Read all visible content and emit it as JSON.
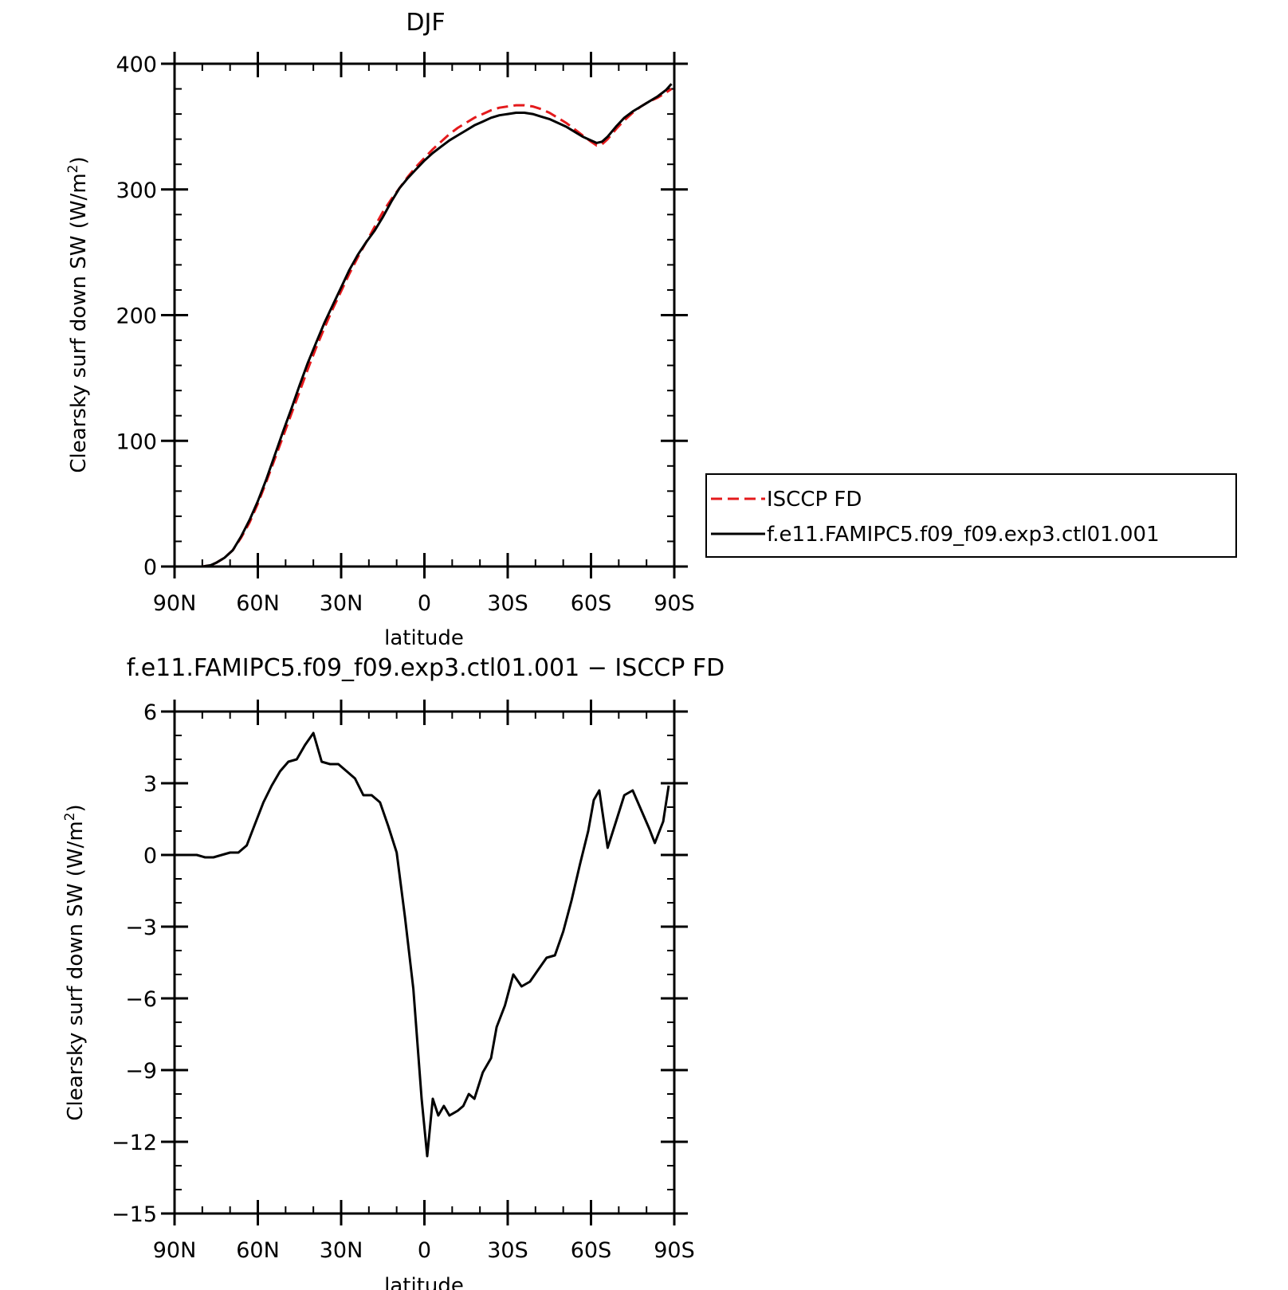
{
  "page": {
    "background": "#ffffff"
  },
  "chart_data": [
    {
      "id": "top",
      "type": "line",
      "title": "DJF",
      "xlabel": "latitude",
      "ylabel": "Clearsky surf down SW (W/m²)",
      "ylabel_main": "Clearsky surf down SW (W/m",
      "ylabel_sup": "2",
      "ylabel_close": ")",
      "xlim": [
        90,
        -90
      ],
      "ylim": [
        0,
        400
      ],
      "x_ticks": [
        90,
        60,
        30,
        0,
        -30,
        -60,
        -90
      ],
      "x_tick_labels": [
        "90N",
        "60N",
        "30N",
        "0",
        "30S",
        "60S",
        "90S"
      ],
      "y_ticks": [
        0,
        100,
        200,
        300,
        400
      ],
      "y_tick_labels": [
        "0",
        "100",
        "200",
        "300",
        "400"
      ],
      "y_minor_step": 20,
      "x_minor_step": 10,
      "legend": {
        "position": "right",
        "entries": [
          "ISCCP FD",
          "f.e11.FAMIPC5.f09_f09.exp3.ctl01.001"
        ]
      },
      "series": [
        {
          "name": "ISCCP FD",
          "color": "#e41a1c",
          "dash": "dashed",
          "points": [
            [
              88,
              0
            ],
            [
              85,
              0
            ],
            [
              80,
              0
            ],
            [
              77,
              1
            ],
            [
              75,
              3
            ],
            [
              72,
              7
            ],
            [
              69,
              13
            ],
            [
              66,
              23
            ],
            [
              63,
              35
            ],
            [
              60,
              50
            ],
            [
              57,
              67
            ],
            [
              54,
              85
            ],
            [
              51,
              103
            ],
            [
              48,
              121
            ],
            [
              45,
              139
            ],
            [
              42,
              157
            ],
            [
              39,
              174
            ],
            [
              36,
              190
            ],
            [
              33,
              205
            ],
            [
              30,
              219
            ],
            [
              27,
              233
            ],
            [
              24,
              246
            ],
            [
              21,
              258
            ],
            [
              18,
              270
            ],
            [
              15,
              282
            ],
            [
              12,
              292
            ],
            [
              9,
              301
            ],
            [
              6,
              310
            ],
            [
              3,
              318
            ],
            [
              0,
              325
            ],
            [
              -3,
              332
            ],
            [
              -6,
              338
            ],
            [
              -9,
              344
            ],
            [
              -12,
              349
            ],
            [
              -15,
              353
            ],
            [
              -18,
              357
            ],
            [
              -21,
              360
            ],
            [
              -24,
              363
            ],
            [
              -27,
              365
            ],
            [
              -30,
              366
            ],
            [
              -33,
              367
            ],
            [
              -36,
              367
            ],
            [
              -39,
              366
            ],
            [
              -42,
              364
            ],
            [
              -45,
              361
            ],
            [
              -48,
              357
            ],
            [
              -51,
              353
            ],
            [
              -54,
              348
            ],
            [
              -57,
              343
            ],
            [
              -60,
              338
            ],
            [
              -62,
              335
            ],
            [
              -64,
              336
            ],
            [
              -66,
              340
            ],
            [
              -69,
              348
            ],
            [
              -72,
              355
            ],
            [
              -75,
              361
            ],
            [
              -78,
              366
            ],
            [
              -81,
              370
            ],
            [
              -84,
              373
            ],
            [
              -87,
              377
            ],
            [
              -89,
              380
            ]
          ]
        },
        {
          "name": "f.e11.FAMIPC5.f09_f09.exp3.ctl01.001",
          "color": "#000000",
          "dash": "solid",
          "points": [
            [
              88,
              0
            ],
            [
              85,
              0
            ],
            [
              80,
              0
            ],
            [
              77,
              1
            ],
            [
              75,
              3
            ],
            [
              72,
              7
            ],
            [
              69,
              13
            ],
            [
              66,
              24
            ],
            [
              63,
              37
            ],
            [
              60,
              52
            ],
            [
              57,
              69
            ],
            [
              54,
              88
            ],
            [
              51,
              107
            ],
            [
              48,
              125
            ],
            [
              45,
              144
            ],
            [
              42,
              162
            ],
            [
              39,
              178
            ],
            [
              36,
              194
            ],
            [
              33,
              208
            ],
            [
              30,
              222
            ],
            [
              27,
              236
            ],
            [
              24,
              248
            ],
            [
              21,
              258
            ],
            [
              18,
              267
            ],
            [
              15,
              278
            ],
            [
              12,
              290
            ],
            [
              9,
              301
            ],
            [
              6,
              309
            ],
            [
              3,
              316
            ],
            [
              0,
              323
            ],
            [
              -3,
              329
            ],
            [
              -6,
              334
            ],
            [
              -9,
              339
            ],
            [
              -12,
              343
            ],
            [
              -15,
              347
            ],
            [
              -18,
              351
            ],
            [
              -21,
              354
            ],
            [
              -24,
              357
            ],
            [
              -27,
              359
            ],
            [
              -30,
              360
            ],
            [
              -33,
              361
            ],
            [
              -36,
              361
            ],
            [
              -39,
              360
            ],
            [
              -42,
              358
            ],
            [
              -45,
              356
            ],
            [
              -48,
              353
            ],
            [
              -51,
              350
            ],
            [
              -54,
              346
            ],
            [
              -57,
              342
            ],
            [
              -60,
              339
            ],
            [
              -62,
              337
            ],
            [
              -64,
              338
            ],
            [
              -66,
              342
            ],
            [
              -69,
              350
            ],
            [
              -72,
              357
            ],
            [
              -75,
              362
            ],
            [
              -78,
              366
            ],
            [
              -81,
              370
            ],
            [
              -84,
              374
            ],
            [
              -87,
              379
            ],
            [
              -89,
              384
            ]
          ]
        }
      ]
    },
    {
      "id": "bottom",
      "type": "line",
      "title": "f.e11.FAMIPC5.f09_f09.exp3.ctl01.001 − ISCCP FD",
      "xlabel": "latitude",
      "ylabel": "Clearsky surf down SW (W/m²)",
      "ylabel_main": "Clearsky surf down SW (W/m",
      "ylabel_sup": "2",
      "ylabel_close": ")",
      "xlim": [
        90,
        -90
      ],
      "ylim": [
        -15,
        6
      ],
      "x_ticks": [
        90,
        60,
        30,
        0,
        -30,
        -60,
        -90
      ],
      "x_tick_labels": [
        "90N",
        "60N",
        "30N",
        "0",
        "30S",
        "60S",
        "90S"
      ],
      "y_ticks": [
        -15,
        -12,
        -9,
        -6,
        -3,
        0,
        3,
        6
      ],
      "y_tick_labels": [
        "−15",
        "−12",
        "−9",
        "−6",
        "−3",
        "0",
        "3",
        "6"
      ],
      "y_minor_step": 1,
      "x_minor_step": 10,
      "series": [
        {
          "name": "f.e11.FAMIPC5.f09_f09.exp3.ctl01.001 − ISCCP FD",
          "color": "#000000",
          "dash": "solid",
          "points": [
            [
              88,
              0.0
            ],
            [
              85,
              0.0
            ],
            [
              82,
              0.0
            ],
            [
              79,
              -0.1
            ],
            [
              76,
              -0.1
            ],
            [
              73,
              0.0
            ],
            [
              70,
              0.1
            ],
            [
              67,
              0.1
            ],
            [
              64,
              0.4
            ],
            [
              61,
              1.3
            ],
            [
              58,
              2.2
            ],
            [
              55,
              2.9
            ],
            [
              52,
              3.5
            ],
            [
              49,
              3.9
            ],
            [
              46,
              4.0
            ],
            [
              43,
              4.6
            ],
            [
              40,
              5.1
            ],
            [
              37,
              3.9
            ],
            [
              34,
              3.8
            ],
            [
              31,
              3.8
            ],
            [
              28,
              3.5
            ],
            [
              25,
              3.2
            ],
            [
              22,
              2.5
            ],
            [
              19,
              2.5
            ],
            [
              16,
              2.2
            ],
            [
              13,
              1.2
            ],
            [
              10,
              0.1
            ],
            [
              7,
              -2.6
            ],
            [
              4,
              -5.6
            ],
            [
              1,
              -10.2
            ],
            [
              -1,
              -12.6
            ],
            [
              -3,
              -10.2
            ],
            [
              -5,
              -10.9
            ],
            [
              -7,
              -10.5
            ],
            [
              -9,
              -10.9
            ],
            [
              -12,
              -10.7
            ],
            [
              -14,
              -10.5
            ],
            [
              -16,
              -10.0
            ],
            [
              -18,
              -10.2
            ],
            [
              -21,
              -9.1
            ],
            [
              -24,
              -8.5
            ],
            [
              -26,
              -7.2
            ],
            [
              -29,
              -6.3
            ],
            [
              -32,
              -5.0
            ],
            [
              -35,
              -5.5
            ],
            [
              -38,
              -5.3
            ],
            [
              -41,
              -4.8
            ],
            [
              -44,
              -4.3
            ],
            [
              -47,
              -4.2
            ],
            [
              -50,
              -3.2
            ],
            [
              -53,
              -1.9
            ],
            [
              -56,
              -0.4
            ],
            [
              -59,
              1.0
            ],
            [
              -61,
              2.3
            ],
            [
              -63,
              2.7
            ],
            [
              -66,
              0.3
            ],
            [
              -69,
              1.4
            ],
            [
              -72,
              2.5
            ],
            [
              -75,
              2.7
            ],
            [
              -78,
              1.9
            ],
            [
              -81,
              1.1
            ],
            [
              -83,
              0.5
            ],
            [
              -86,
              1.4
            ],
            [
              -88,
              2.9
            ]
          ]
        }
      ]
    }
  ]
}
